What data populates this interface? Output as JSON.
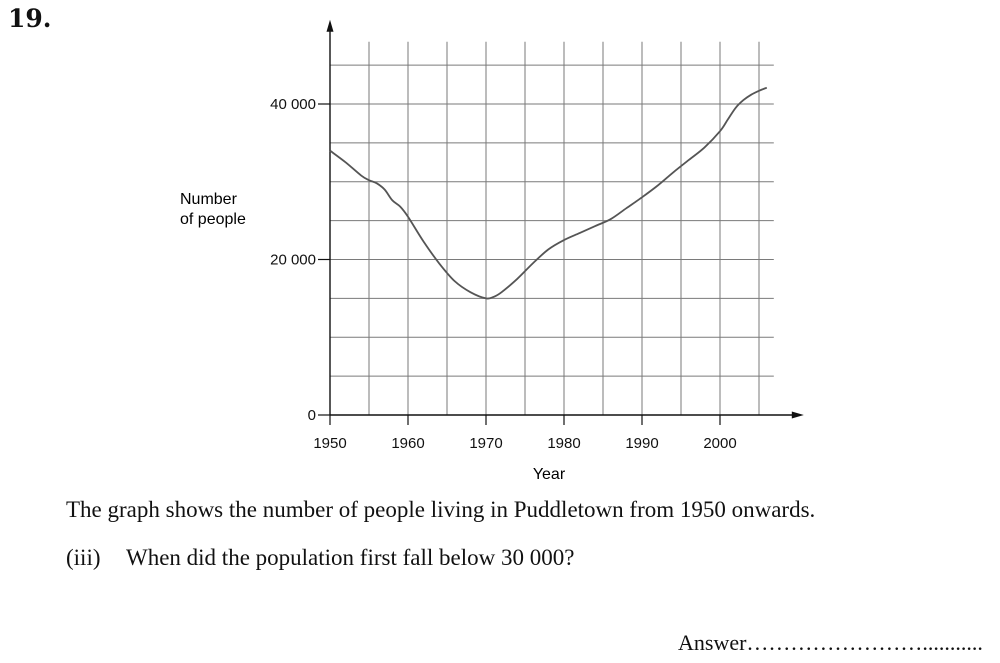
{
  "question_number": "19.",
  "intro_text": "The graph shows the number of people living in Puddletown from 1950 onwards.",
  "question": {
    "label": "(iii)",
    "text": "When did the population first fall below 30 000?"
  },
  "answer_line": "Answer……………………...........",
  "chart_data": {
    "type": "line",
    "xlabel": "Year",
    "ylabel": [
      "Number",
      "of people"
    ],
    "x_ticks": [
      {
        "value": 1950,
        "label": "1950"
      },
      {
        "value": 1960,
        "label": "1960"
      },
      {
        "value": 1970,
        "label": "1970"
      },
      {
        "value": 1980,
        "label": "1980"
      },
      {
        "value": 1990,
        "label": "1990"
      },
      {
        "value": 2000,
        "label": "2000"
      }
    ],
    "y_ticks": [
      {
        "value": 0,
        "label": "0"
      },
      {
        "value": 20000,
        "label": "20 000"
      },
      {
        "value": 40000,
        "label": "40 000"
      }
    ],
    "xlim": [
      1950,
      2006
    ],
    "ylim": [
      0,
      48000
    ],
    "grid": true,
    "x_grid_step": 5,
    "y_grid_step": 5000,
    "series": [
      {
        "x": [
          1950,
          1952,
          1954,
          1955,
          1956,
          1957,
          1958,
          1959,
          1960,
          1962,
          1964,
          1966,
          1968,
          1970,
          1971,
          1972,
          1974,
          1976,
          1978,
          1980,
          1982,
          1984,
          1986,
          1988,
          1990,
          1992,
          1994,
          1996,
          1998,
          2000,
          2001,
          2002,
          2003,
          2004,
          2005,
          2006
        ],
        "y": [
          34000,
          32500,
          30800,
          30200,
          29800,
          29000,
          27600,
          26800,
          25500,
          22300,
          19500,
          17200,
          15800,
          15000,
          15200,
          15800,
          17500,
          19500,
          21300,
          22500,
          23400,
          24300,
          25200,
          26600,
          28000,
          29500,
          31200,
          32800,
          34400,
          36500,
          38000,
          39500,
          40500,
          41200,
          41700,
          42100
        ]
      }
    ]
  }
}
